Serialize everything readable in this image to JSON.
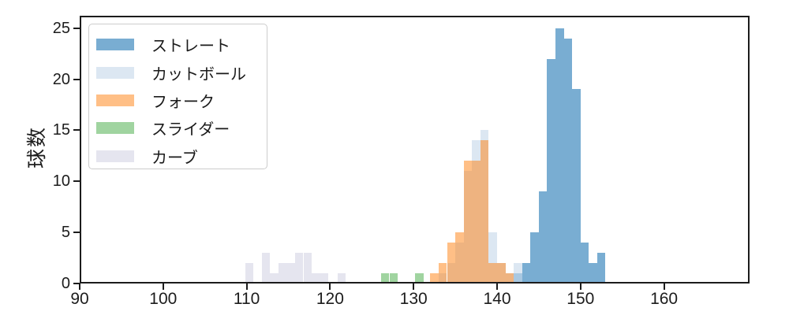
{
  "figure": {
    "background": "#ffffff",
    "frame_color": "#1c1c1c",
    "text_color": "#1c1c1c"
  },
  "axes": {
    "ylabel": "球数",
    "xlim": [
      90,
      170.25
    ],
    "ylim": [
      0,
      26.2
    ],
    "x_tick_values": [
      90,
      100,
      110,
      120,
      130,
      140,
      150,
      160
    ],
    "x_tick_labels": [
      "90",
      "100",
      "110",
      "120",
      "130",
      "140",
      "150",
      "160"
    ],
    "y_tick_values": [
      0,
      5,
      10,
      15,
      20,
      25
    ],
    "y_tick_labels": [
      "0",
      "5",
      "10",
      "15",
      "20",
      "25"
    ],
    "grid": false
  },
  "chart_data": {
    "type": "bar",
    "subtype": "overlaid-histograms",
    "title": "",
    "xlabel": "",
    "ylabel": "球数",
    "legend_position": "upper left",
    "bin_width": 1,
    "series": [
      {
        "name": "ストレート",
        "color": "rgba(31,119,180,0.6)",
        "solid_color": "#79add2",
        "bars": [
          [
            142,
            1
          ],
          [
            143,
            2
          ],
          [
            144,
            5
          ],
          [
            145,
            9
          ],
          [
            146,
            22
          ],
          [
            147,
            25
          ],
          [
            148,
            24
          ],
          [
            149,
            19
          ],
          [
            150,
            4
          ],
          [
            151,
            2
          ],
          [
            152,
            3
          ]
        ]
      },
      {
        "name": "カットボール",
        "color": "rgba(198,216,234,0.62)",
        "solid_color": "#dce7f2",
        "bars": [
          [
            133,
            1
          ],
          [
            134,
            2
          ],
          [
            135,
            4
          ],
          [
            136,
            11
          ],
          [
            137,
            14
          ],
          [
            138,
            15
          ],
          [
            139,
            5
          ],
          [
            140,
            2
          ],
          [
            141,
            1
          ],
          [
            142,
            2
          ]
        ]
      },
      {
        "name": "フォーク",
        "color": "rgba(255,127,14,0.5)",
        "solid_color": "#ffbf87",
        "bars": [
          [
            132,
            1
          ],
          [
            133,
            2
          ],
          [
            134,
            4
          ],
          [
            135,
            5
          ],
          [
            136,
            12
          ],
          [
            137,
            12
          ],
          [
            138,
            14
          ],
          [
            139,
            2
          ],
          [
            140,
            2
          ],
          [
            141,
            1
          ]
        ]
      },
      {
        "name": "スライダー",
        "color": "rgba(44,160,44,0.45)",
        "solid_color": "#a0d4a0",
        "bars": [
          [
            126.1,
            1
          ],
          [
            127.1,
            1
          ],
          [
            130.2,
            1
          ]
        ]
      },
      {
        "name": "カーブ",
        "color": "rgba(180,180,210,0.35)",
        "solid_color": "#e5e5f0",
        "bars": [
          [
            109.8,
            2
          ],
          [
            111.8,
            3
          ],
          [
            112.8,
            1
          ],
          [
            113.8,
            2
          ],
          [
            114.8,
            2
          ],
          [
            115.8,
            3
          ],
          [
            116.8,
            3
          ],
          [
            117.8,
            1
          ],
          [
            118.8,
            1
          ],
          [
            120.9,
            1
          ]
        ]
      }
    ]
  }
}
